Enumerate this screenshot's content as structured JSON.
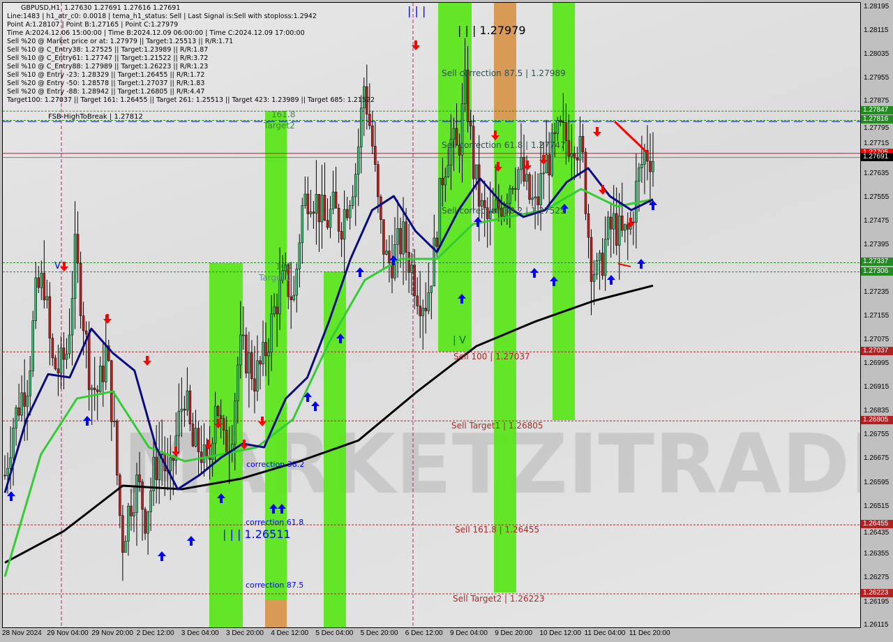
{
  "header": {
    "symbol": "GBPUSD,H1",
    "ohlc": "1.27630 1.27691 1.27616 1.27691",
    "lines": [
      "Line:1483 | h1_atr_c0: 0.0018 | tema_h1_status: Sell | Last Signal is:Sell with stoploss:1.2942",
      "Point A:1.28107 | Point B:1.27165 | Point C:1.27979",
      "Time A:2024.12.06 15:00:00 | Time B:2024.12.09 06:00:00 | Time C:2024.12.09 17:00:00",
      "Sell %20 @ Market price or at: 1.27979 || Target:1.25513 || R/R:1.71",
      "Sell %10 @ C_Entry38: 1.27525 || Target:1.23989 || R/R:1.87",
      "Sell %10 @ C_Entry61: 1.27747 || Target:1.21522 || R/R:3.72",
      "Sell %10 @ C_Entry88: 1.27989 || Target:1.26223 || R/R:1.23",
      "Sell %10 @ Entry -23: 1.28329 || Target:1.26455 || R/R:1.72",
      "Sell %20 @ Entry -50: 1.28578 || Target:1.27037 || R/R:1.83",
      "Sell %20 @ Entry -88: 1.28942 || Target:1.26805 || R/R:4.47",
      "Target100: 1.27037 || Target 161: 1.26455 || Target 261: 1.25513 || Target 423: 1.23989 || Target 685: 1.21522"
    ]
  },
  "labels": {
    "fsb": "FSB-HighToBreak | 1.27812",
    "fib1618": "161.8",
    "target2": "Target2",
    "fib100": "100",
    "target1": "Target1",
    "point_c": "| | | 1.27979",
    "top_marker": "| | |",
    "point_b_marker": "| V",
    "v_marker": "V",
    "sell_corr_875": "Sell correction 87.5 | 1.27989",
    "sell_corr_618": "Sell correction 61.8 | 1.27747",
    "sell_corr_382": "Sell correction 38.2 | 1.27525",
    "sell_100": "Sell 100 | 1.27037",
    "sell_target1": "Sell Target1 | 1.26805",
    "sell_1618": "Sell 161.8 | 1.26455",
    "sell_target2": "Sell Target2 | 1.26223",
    "corr_382": "correction 38.2",
    "corr_618": "correction 61.8",
    "corr_875": "correction 87.5",
    "buy_point": "| | | 1.26511"
  },
  "watermark": "MARKETZITRADE",
  "price_axis": {
    "ticks": [
      "1.28195",
      "1.28115",
      "1.28035",
      "1.27955",
      "1.27875",
      "1.27795",
      "1.27715",
      "1.27635",
      "1.27555",
      "1.27475",
      "1.27395",
      "1.27235",
      "1.27155",
      "1.27075",
      "1.26995",
      "1.26915",
      "1.26835",
      "1.26755",
      "1.26675",
      "1.26595",
      "1.26515",
      "1.26435",
      "1.26355",
      "1.26275",
      "1.26195",
      "1.26115"
    ],
    "tags": [
      {
        "value": "1.27847",
        "color": "#228b22"
      },
      {
        "value": "1.27816",
        "color": "#228b22"
      },
      {
        "value": "1.27705",
        "color": "#ff0000"
      },
      {
        "value": "1.27691",
        "color": "#000000"
      },
      {
        "value": "1.27337",
        "color": "#228b22"
      },
      {
        "value": "1.27306",
        "color": "#228b22"
      },
      {
        "value": "1.27037",
        "color": "#b22222"
      },
      {
        "value": "1.26805",
        "color": "#b22222"
      },
      {
        "value": "1.26455",
        "color": "#b22222"
      },
      {
        "value": "1.26223",
        "color": "#b22222"
      }
    ]
  },
  "time_axis": [
    "28 Nov 2024",
    "29 Nov 04:00",
    "29 Nov 20:00",
    "2 Dec 12:00",
    "3 Dec 04:00",
    "3 Dec 20:00",
    "4 Dec 12:00",
    "5 Dec 04:00",
    "5 Dec 20:00",
    "6 Dec 12:00",
    "9 Dec 04:00",
    "9 Dec 20:00",
    "10 Dec 12:00",
    "11 Dec 04:00",
    "11 Dec 20:00"
  ],
  "chart_data": {
    "type": "candlestick",
    "symbol": "GBPUSD",
    "timeframe": "H1",
    "ylim": [
      1.26115,
      1.28195
    ],
    "x_range": [
      "28 Nov 2024",
      "11 Dec 2024"
    ],
    "closes": [
      1.26622,
      1.26786,
      1.2688,
      1.26951,
      1.27232,
      1.27279,
      1.26998,
      1.26974,
      1.27044,
      1.27373,
      1.27162,
      1.26927,
      1.26904,
      1.27044,
      1.26763,
      1.26387,
      1.26528,
      1.26598,
      1.26481,
      1.26622,
      1.26716,
      1.26575,
      1.26763,
      1.26904,
      1.26716,
      1.26716,
      1.26622,
      1.26904,
      1.26716,
      1.26763,
      1.27044,
      1.27021,
      1.26951,
      1.26998,
      1.27115,
      1.27232,
      1.27279,
      1.27209,
      1.27514,
      1.27585,
      1.27538,
      1.27467,
      1.27514,
      1.27467,
      1.27561,
      1.27655,
      1.27937,
      1.27749,
      1.27467,
      1.27326,
      1.27373,
      1.2742,
      1.27326,
      1.27232,
      1.27209,
      1.27373,
      1.27631,
      1.27749,
      1.27702,
      1.27937,
      1.27655,
      1.27514,
      1.27467,
      1.27514,
      1.27561,
      1.27631,
      1.27655,
      1.27561,
      1.27514,
      1.27655,
      1.27702,
      1.27772,
      1.27749,
      1.2776,
      1.27678,
      1.2735,
      1.27279,
      1.2742,
      1.27467,
      1.2742,
      1.27444,
      1.27608,
      1.27714,
      1.27691
    ],
    "ma_black": [
      1.26328,
      1.26434,
      1.26587,
      1.26575,
      1.2661,
      1.26669,
      1.26739,
      1.26904,
      1.27056,
      1.27139,
      1.27209,
      1.2726
    ],
    "ma_green": [
      1.26281,
      1.26692,
      1.2688,
      1.26904,
      1.26716,
      1.26669,
      1.26692,
      1.26716,
      1.2681,
      1.27068,
      1.27279,
      1.2735,
      1.2735,
      1.27467,
      1.27491,
      1.27514,
      1.27585,
      1.27526,
      1.2755
    ],
    "ma_navy": [
      1.26563,
      1.2681,
      1.26962,
      1.26951,
      1.27115,
      1.27033,
      1.26974,
      1.26716,
      1.26575,
      1.26622,
      1.26681,
      1.26728,
      1.26716,
      1.2688,
      1.26951,
      1.27139,
      1.2735,
      1.27514,
      1.27561,
      1.27444,
      1.27373,
      1.27514,
      1.2762,
      1.27538,
      1.27491,
      1.27514,
      1.27608,
      1.27655,
      1.27561,
      1.27514,
      1.2755
    ],
    "levels": [
      {
        "price": 1.27847,
        "style": "dashed",
        "color": "#228b22"
      },
      {
        "price": 1.27816,
        "style": "dashed",
        "color": "#228b22"
      },
      {
        "price": 1.27812,
        "style": "dashed",
        "color": "#0000cd"
      },
      {
        "price": 1.27705,
        "style": "solid",
        "color": "#ff0000"
      },
      {
        "price": 1.27691,
        "style": "solid",
        "color": "#708090"
      },
      {
        "price": 1.27337,
        "style": "dashed",
        "color": "#228b22"
      },
      {
        "price": 1.27306,
        "style": "dashed",
        "color": "#228b22"
      },
      {
        "price": 1.27037,
        "style": "dashed",
        "color": "#a52a2a"
      },
      {
        "price": 1.26805,
        "style": "dashed",
        "color": "#a52a2a"
      },
      {
        "price": 1.26455,
        "style": "dashed",
        "color": "#a52a2a"
      },
      {
        "price": 1.26223,
        "style": "dashed",
        "color": "#a52a2a"
      }
    ],
    "colors": {
      "bull": "#3cb371",
      "bear": "#b22222",
      "band_green": "#5ce61c",
      "band_orange": "#d99a55"
    }
  }
}
